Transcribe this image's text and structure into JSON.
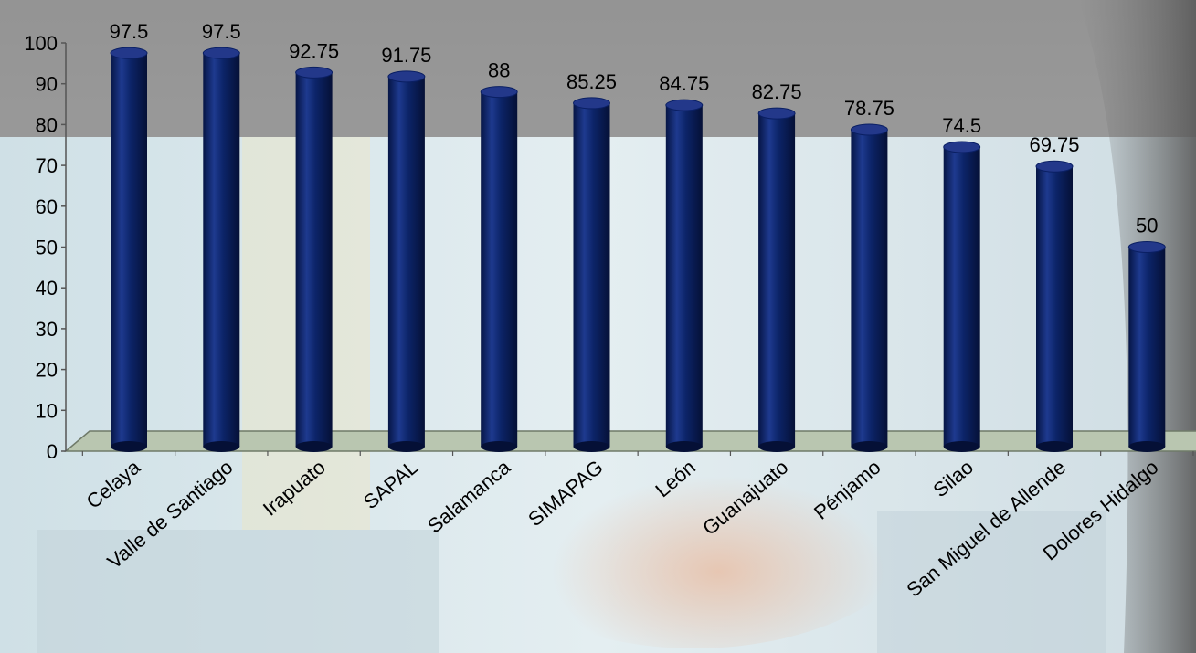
{
  "chart_data": {
    "type": "bar",
    "title": "",
    "xlabel": "",
    "ylabel": "",
    "categories": [
      "Celaya",
      "Valle de Santiago",
      "Irapuato",
      "SAPAL",
      "Salamanca",
      "SIMAPAG",
      "León",
      "Guanajuato",
      "Pénjamo",
      "Silao",
      "San Miguel de Allende",
      "Dolores Hidalgo"
    ],
    "values": [
      97.5,
      97.5,
      92.75,
      91.75,
      88,
      85.25,
      84.75,
      82.75,
      78.75,
      74.5,
      69.75,
      50
    ],
    "value_labels": [
      "97.5",
      "97.5",
      "92.75",
      "91.75",
      "88",
      "85.25",
      "84.75",
      "82.75",
      "78.75",
      "74.5",
      "69.75",
      "50"
    ],
    "ylim": [
      0,
      100
    ],
    "yticks": [
      0,
      10,
      20,
      30,
      40,
      50,
      60,
      70,
      80,
      90,
      100
    ],
    "grid": false,
    "legend": "none",
    "bar_style": "3d-cylinder"
  },
  "colors": {
    "bar": "#0a1f63",
    "bar_highlight": "#3550a6",
    "bar_top": "#23388a",
    "floor": "#b9c6b0",
    "floor_edge": "#6f7a69",
    "text": "#000000",
    "background_gray": "#9a9a9a",
    "background_band": "#d7e6ea"
  }
}
